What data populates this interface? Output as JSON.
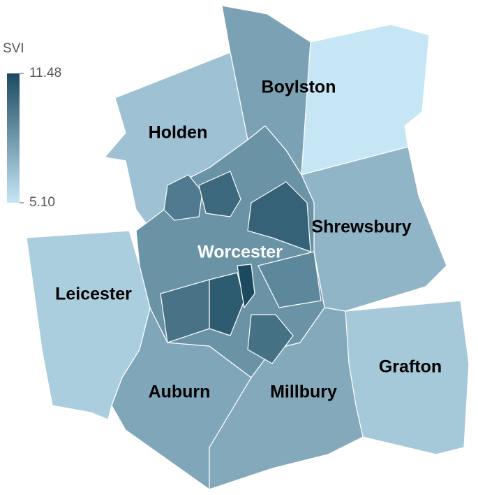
{
  "legend": {
    "title": "SVI",
    "lim": [
      5.1,
      11.48
    ],
    "ticks": [
      11.48,
      {
        "value": 5.1,
        "label": "5.10"
      }
    ],
    "colors": [
      "#c6e6f6",
      "#1b4a60"
    ]
  },
  "towns": [
    {
      "name": "Boylston",
      "value": 7.9
    },
    {
      "value": 5.1
    },
    {
      "name": "Holden",
      "value": 6.6
    },
    {
      "name": "Shrewsbury",
      "value": 7.1
    },
    {
      "name": "Grafton",
      "value": 6.3
    },
    {
      "name": "Millbury",
      "value": 7.6
    },
    {
      "name": "Auburn",
      "value": 7.7
    },
    {
      "name": "Leicester",
      "value": 6.1
    },
    {
      "name": "Worcester",
      "value": 8.5
    }
  ],
  "tracts": [
    9.5,
    10.2,
    10.5,
    10.8,
    11.48,
    9.8,
    9.9,
    9.0
  ]
}
